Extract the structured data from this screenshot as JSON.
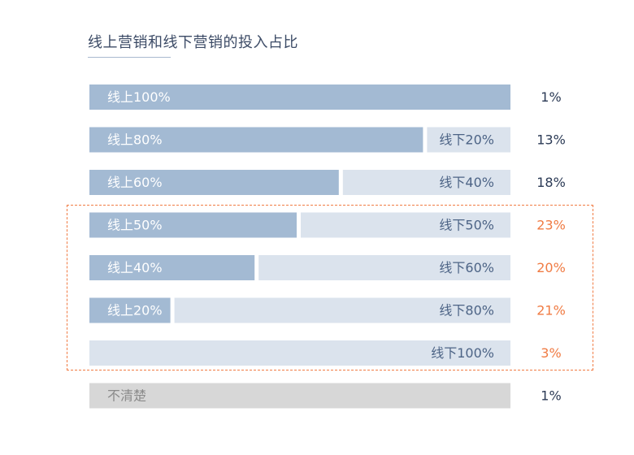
{
  "title": "线上营销和线下营销的投入占比",
  "colors": {
    "online": "#a3bad3",
    "offline": "#dbe3ed",
    "unclear": "#d7d7d7",
    "label_on_online": "#ffffff",
    "label_on_offline": "#4d6486",
    "label_unclear": "#8a8a8a",
    "pct_normal": "#2b3a55",
    "pct_highlight": "#f07b43",
    "highlight_border": "#f07b43"
  },
  "chart_data": {
    "type": "bar",
    "orientation": "horizontal-stacked-100",
    "title": "线上营销和线下营销的投入占比",
    "categories": [
      {
        "online": 100,
        "offline": 0,
        "online_label": "线上100%",
        "offline_label": "",
        "share": "1%",
        "highlighted": false
      },
      {
        "online": 80,
        "offline": 20,
        "online_label": "线上80%",
        "offline_label": "线下20%",
        "share": "13%",
        "highlighted": false
      },
      {
        "online": 60,
        "offline": 40,
        "online_label": "线上60%",
        "offline_label": "线下40%",
        "share": "18%",
        "highlighted": false
      },
      {
        "online": 50,
        "offline": 50,
        "online_label": "线上50%",
        "offline_label": "线下50%",
        "share": "23%",
        "highlighted": true
      },
      {
        "online": 40,
        "offline": 60,
        "online_label": "线上40%",
        "offline_label": "线下60%",
        "share": "20%",
        "highlighted": true
      },
      {
        "online": 20,
        "offline": 80,
        "online_label": "线上20%",
        "offline_label": "线下80%",
        "share": "21%",
        "highlighted": true
      },
      {
        "online": 0,
        "offline": 100,
        "online_label": "",
        "offline_label": "线下100%",
        "share": "3%",
        "highlighted": true
      },
      {
        "unclear": true,
        "label": "不清楚",
        "share": "1%",
        "highlighted": false
      }
    ]
  }
}
